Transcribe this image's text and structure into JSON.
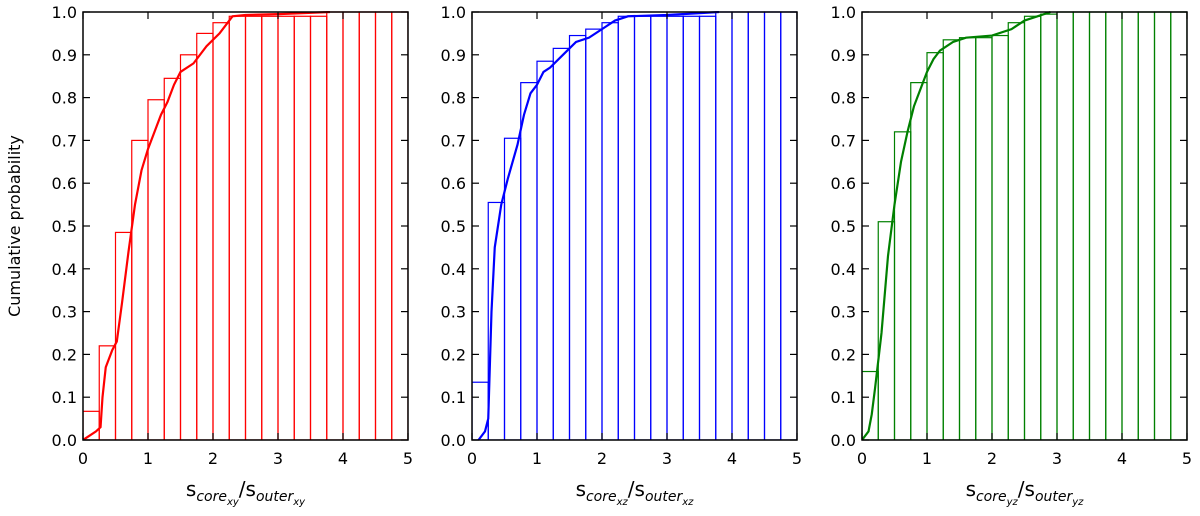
{
  "chart_data": [
    {
      "type": "histogram",
      "color": "#ff0000",
      "ylabel": "Cumulative probability",
      "xlabel": {
        "parts": [
          {
            "text": "s",
            "level": 0
          },
          {
            "text": "core",
            "level": 1
          },
          {
            "text": "xy",
            "level": 2
          },
          {
            "text": "/s",
            "level": 0
          },
          {
            "text": "outer",
            "level": 1
          },
          {
            "text": "xy",
            "level": 2
          }
        ]
      },
      "bins": [
        0,
        0.25,
        0.5,
        0.75,
        1,
        1.25,
        1.5,
        1.75,
        2,
        2.25,
        2.5,
        2.75,
        3,
        3.25,
        3.5,
        3.75,
        4,
        4.25,
        4.5,
        4.75,
        5
      ],
      "values": [
        0.067,
        0.22,
        0.485,
        0.7,
        0.795,
        0.845,
        0.9,
        0.95,
        0.975,
        0.99,
        0.99,
        0.99,
        0.99,
        0.99,
        0.99,
        1.0,
        1.0,
        1.0,
        1.0,
        1.0
      ],
      "cdf_x": [
        0,
        0.1,
        0.2,
        0.27,
        0.3,
        0.35,
        0.45,
        0.52,
        0.6,
        0.7,
        0.8,
        0.9,
        1.0,
        1.1,
        1.2,
        1.3,
        1.4,
        1.5,
        1.7,
        1.9,
        2.1,
        2.3,
        2.5,
        3.0,
        3.8
      ],
      "cdf_y": [
        0,
        0.01,
        0.02,
        0.03,
        0.1,
        0.17,
        0.21,
        0.23,
        0.32,
        0.44,
        0.55,
        0.63,
        0.68,
        0.72,
        0.76,
        0.79,
        0.83,
        0.86,
        0.88,
        0.92,
        0.95,
        0.99,
        0.993,
        0.995,
        1.0
      ],
      "xlim": [
        0,
        5
      ],
      "ylim": [
        0,
        1
      ],
      "xticks": [
        0,
        1,
        2,
        3,
        4,
        5
      ],
      "yticks": [
        {
          "value": 0,
          "label": "0.0"
        },
        0.1,
        0.2,
        0.3,
        0.4,
        0.5,
        0.6,
        0.7,
        0.8,
        0.9,
        {
          "value": 1,
          "label": "1.0"
        }
      ]
    },
    {
      "type": "histogram",
      "color": "#0000ff",
      "xlabel": {
        "parts": [
          {
            "text": "s",
            "level": 0
          },
          {
            "text": "core",
            "level": 1
          },
          {
            "text": "xz",
            "level": 2
          },
          {
            "text": "/s",
            "level": 0
          },
          {
            "text": "outer",
            "level": 1
          },
          {
            "text": "xz",
            "level": 2
          }
        ]
      },
      "bins": [
        0,
        0.25,
        0.5,
        0.75,
        1,
        1.25,
        1.5,
        1.75,
        2,
        2.25,
        2.5,
        2.75,
        3,
        3.25,
        3.5,
        3.75,
        4,
        4.25,
        4.5,
        4.75,
        5
      ],
      "values": [
        0.135,
        0.555,
        0.705,
        0.835,
        0.885,
        0.915,
        0.945,
        0.96,
        0.975,
        0.99,
        0.99,
        0.99,
        0.99,
        0.99,
        0.99,
        1.0,
        1.0,
        1.0,
        1.0,
        1.0
      ],
      "cdf_x": [
        0.1,
        0.2,
        0.25,
        0.3,
        0.35,
        0.45,
        0.55,
        0.7,
        0.8,
        0.9,
        1.0,
        1.1,
        1.2,
        1.4,
        1.6,
        1.8,
        2.0,
        2.2,
        2.4,
        3.0,
        3.8
      ],
      "cdf_y": [
        0,
        0.02,
        0.05,
        0.3,
        0.45,
        0.55,
        0.61,
        0.69,
        0.76,
        0.81,
        0.83,
        0.86,
        0.87,
        0.9,
        0.93,
        0.94,
        0.96,
        0.98,
        0.99,
        0.993,
        1.0
      ],
      "xlim": [
        0,
        5
      ],
      "ylim": [
        0,
        1
      ],
      "xticks": [
        0,
        1,
        2,
        3,
        4,
        5
      ],
      "yticks": [
        {
          "value": 0,
          "label": "0.0"
        },
        0.1,
        0.2,
        0.3,
        0.4,
        0.5,
        0.6,
        0.7,
        0.8,
        0.9,
        {
          "value": 1,
          "label": "1.0"
        }
      ]
    },
    {
      "type": "histogram",
      "color": "#008000",
      "xlabel": {
        "parts": [
          {
            "text": "s",
            "level": 0
          },
          {
            "text": "core",
            "level": 1
          },
          {
            "text": "yz",
            "level": 2
          },
          {
            "text": "/s",
            "level": 0
          },
          {
            "text": "outer",
            "level": 1
          },
          {
            "text": "yz",
            "level": 2
          }
        ]
      },
      "bins": [
        0,
        0.25,
        0.5,
        0.75,
        1,
        1.25,
        1.5,
        1.75,
        2,
        2.25,
        2.5,
        2.75,
        3,
        3.25,
        3.5,
        3.75,
        4,
        4.25,
        4.5,
        4.75,
        5
      ],
      "values": [
        0.16,
        0.51,
        0.72,
        0.835,
        0.905,
        0.935,
        0.94,
        0.94,
        0.945,
        0.975,
        0.99,
        0.995,
        1.0,
        1.0,
        1.0,
        1.0,
        1.0,
        1.0,
        1.0,
        1.0
      ],
      "cdf_x": [
        0,
        0.1,
        0.15,
        0.2,
        0.3,
        0.4,
        0.5,
        0.6,
        0.7,
        0.8,
        0.9,
        1.0,
        1.1,
        1.2,
        1.4,
        1.6,
        2.0,
        2.3,
        2.5,
        2.7,
        2.9
      ],
      "cdf_y": [
        0,
        0.02,
        0.06,
        0.12,
        0.25,
        0.43,
        0.55,
        0.65,
        0.72,
        0.78,
        0.82,
        0.86,
        0.89,
        0.91,
        0.93,
        0.94,
        0.945,
        0.96,
        0.98,
        0.99,
        1.0
      ],
      "xlim": [
        0,
        5
      ],
      "ylim": [
        0,
        1
      ],
      "xticks": [
        0,
        1,
        2,
        3,
        4,
        5
      ],
      "yticks": [
        {
          "value": 0,
          "label": "0.0"
        },
        0.1,
        0.2,
        0.3,
        0.4,
        0.5,
        0.6,
        0.7,
        0.8,
        0.9,
        {
          "value": 1,
          "label": "1.0"
        }
      ]
    }
  ]
}
